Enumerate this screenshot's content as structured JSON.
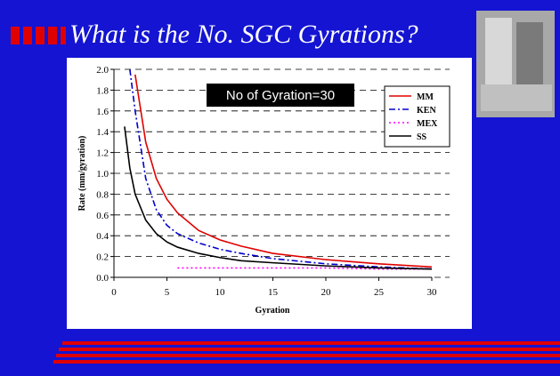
{
  "slide": {
    "title": "What is the No. SGC Gyrations?"
  },
  "chart_data": {
    "type": "line",
    "annotation": "No of Gyration=30",
    "xlabel": "Gyration",
    "ylabel": "Rate (mm/gyration)",
    "x": [
      1,
      1.5,
      2,
      3,
      4,
      5,
      6,
      8,
      10,
      12,
      15,
      20,
      25,
      30
    ],
    "series": [
      {
        "name": "MM",
        "color": "#e00000",
        "style": "solid",
        "values": [
          null,
          null,
          1.95,
          1.3,
          0.95,
          0.75,
          0.62,
          0.45,
          0.36,
          0.3,
          0.23,
          0.17,
          0.13,
          0.1
        ]
      },
      {
        "name": "KEN",
        "color": "#0000cc",
        "style": "dashdot",
        "values": [
          null,
          2.0,
          1.6,
          0.95,
          0.65,
          0.5,
          0.42,
          0.33,
          0.27,
          0.23,
          0.18,
          0.13,
          0.1,
          0.08
        ]
      },
      {
        "name": "MEX",
        "color": "#ff00ff",
        "style": "dotted",
        "values": [
          null,
          null,
          null,
          null,
          null,
          null,
          0.09,
          0.09,
          0.09,
          0.09,
          0.09,
          0.09,
          0.08,
          0.08
        ]
      },
      {
        "name": "SS",
        "color": "#000000",
        "style": "solid",
        "values": [
          1.45,
          1.05,
          0.8,
          0.55,
          0.42,
          0.34,
          0.29,
          0.23,
          0.19,
          0.16,
          0.14,
          0.11,
          0.09,
          0.08
        ]
      }
    ],
    "xlim": [
      0,
      30
    ],
    "xticks": [
      0,
      5,
      10,
      15,
      20,
      25,
      30
    ],
    "ylim": [
      0,
      2
    ],
    "yticks": [
      {
        "value": 0,
        "label": "0.0"
      },
      0.2,
      0.4,
      0.6,
      0.8,
      {
        "value": 1,
        "label": "1.0"
      },
      1.2,
      1.4,
      1.6,
      1.8,
      {
        "value": 2,
        "label": "2.0"
      }
    ],
    "grid": true,
    "legend": "upper right"
  }
}
